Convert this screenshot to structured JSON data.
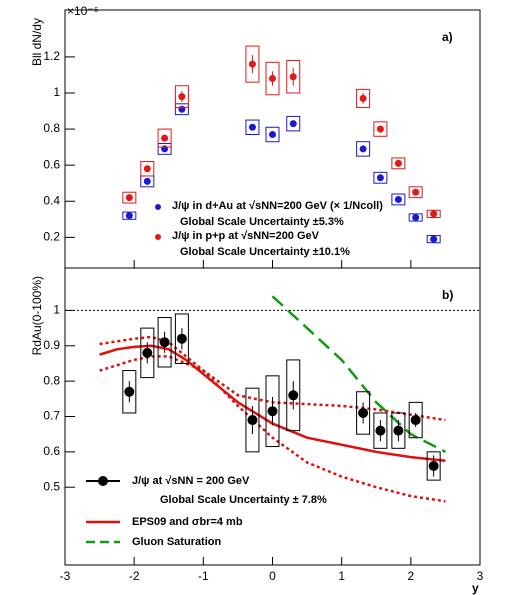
{
  "chart_data": [
    {
      "type": "scatter",
      "panel_label": "a)",
      "y_label": "Bll dN/dy",
      "y_exponent": "×10⁻⁶",
      "xlim": [
        -3,
        3
      ],
      "xticks": [
        -3,
        -2,
        -1,
        0,
        1,
        2,
        3
      ],
      "show_xtick_labels": false,
      "ylim": [
        0.03,
        1.46
      ],
      "yticks": [
        0.2,
        0.4,
        0.6,
        0.8,
        1,
        1.2
      ],
      "series": [
        {
          "name": "J/ψ in d+Au at √sNN=200 GeV (× 1/Ncoll)",
          "scale_note": "Global Scale Uncertainty ±5.3%",
          "color": "#1a1ad6",
          "x": [
            -2.07,
            -1.81,
            -1.56,
            -1.31,
            -0.29,
            0,
            0.3,
            1.31,
            1.56,
            1.82,
            2.07,
            2.33
          ],
          "values": [
            0.32,
            0.51,
            0.69,
            0.91,
            0.81,
            0.77,
            0.83,
            0.69,
            0.53,
            0.41,
            0.31,
            0.19
          ],
          "sys": [
            0.02,
            0.03,
            0.03,
            0.03,
            0.04,
            0.04,
            0.04,
            0.04,
            0.03,
            0.03,
            0.02,
            0.02
          ]
        },
        {
          "name": "J/ψ in p+p at √sNN=200 GeV",
          "scale_note": "Global Scale Uncertainty ±10.1%",
          "color": "#e01818",
          "x": [
            -2.07,
            -1.81,
            -1.56,
            -1.31,
            -0.29,
            0,
            0.3,
            1.31,
            1.56,
            1.82,
            2.07,
            2.33
          ],
          "values": [
            0.42,
            0.58,
            0.75,
            0.98,
            1.16,
            1.08,
            1.09,
            0.97,
            0.8,
            0.61,
            0.45,
            0.33
          ],
          "errors": [
            0.01,
            0.01,
            0.02,
            0.03,
            0.05,
            0.04,
            0.05,
            0.03,
            0.02,
            0.02,
            0.01,
            0.01
          ],
          "sys": [
            0.03,
            0.04,
            0.05,
            0.06,
            0.1,
            0.09,
            0.09,
            0.05,
            0.04,
            0.03,
            0.03,
            0.02
          ]
        }
      ]
    },
    {
      "type": "scatter",
      "panel_label": "b)",
      "y_label": "RdAu(0-100%)",
      "x_label": "y",
      "xlim": [
        -3,
        3
      ],
      "xticks": [
        -3,
        -2,
        -1,
        0,
        1,
        2,
        3
      ],
      "show_xtick_labels": true,
      "ylim": [
        0.28,
        1.12
      ],
      "yticks": [
        0.5,
        0.6,
        0.7,
        0.8,
        0.9,
        1
      ],
      "reference_line": 1,
      "series": [
        {
          "name": "J/ψ at √sNN = 200 GeV",
          "scale_note": "Global Scale Uncertainty ± 7.8%",
          "color": "#000000",
          "x": [
            -2.07,
            -1.81,
            -1.56,
            -1.31,
            -0.29,
            0,
            0.3,
            1.31,
            1.56,
            1.82,
            2.07,
            2.33
          ],
          "values": [
            0.77,
            0.88,
            0.91,
            0.92,
            0.69,
            0.715,
            0.76,
            0.71,
            0.66,
            0.66,
            0.69,
            0.56
          ],
          "errors": [
            0.03,
            0.03,
            0.03,
            0.03,
            0.04,
            0.04,
            0.04,
            0.03,
            0.03,
            0.03,
            0.02,
            0.03
          ],
          "sys": [
            0.06,
            0.07,
            0.07,
            0.07,
            0.09,
            0.1,
            0.1,
            0.06,
            0.05,
            0.05,
            0.05,
            0.04
          ]
        }
      ],
      "curves": [
        {
          "name": "EPS09 and σbr=4 mb",
          "color": "#e01010",
          "dashed": false,
          "x": [
            -2.5,
            -2.25,
            -2,
            -1.75,
            -1.5,
            -1.25,
            -1,
            -0.75,
            -0.5,
            -0.25,
            0,
            0.5,
            1,
            1.5,
            2,
            2.5
          ],
          "values": [
            0.875,
            0.89,
            0.897,
            0.9,
            0.89,
            0.86,
            0.82,
            0.78,
            0.74,
            0.71,
            0.68,
            0.64,
            0.62,
            0.6,
            0.585,
            0.575
          ],
          "band_x": [
            -2.5,
            -2,
            -1.75,
            -1.5,
            -1,
            -0.5,
            0,
            0.5,
            1,
            1.5,
            2,
            2.5
          ],
          "band_upper": [
            0.905,
            0.92,
            0.925,
            0.91,
            0.83,
            0.76,
            0.74,
            0.735,
            0.73,
            0.72,
            0.705,
            0.69
          ],
          "band_lower": [
            0.83,
            0.86,
            0.87,
            0.87,
            0.83,
            0.73,
            0.64,
            0.57,
            0.53,
            0.5,
            0.475,
            0.46
          ]
        },
        {
          "name": "Gluon Saturation",
          "color": "#119911",
          "dashed": true,
          "x": [
            0,
            0.5,
            1,
            1.5,
            2,
            2.5
          ],
          "values": [
            1.04,
            0.95,
            0.86,
            0.74,
            0.65,
            0.6
          ]
        }
      ]
    }
  ]
}
